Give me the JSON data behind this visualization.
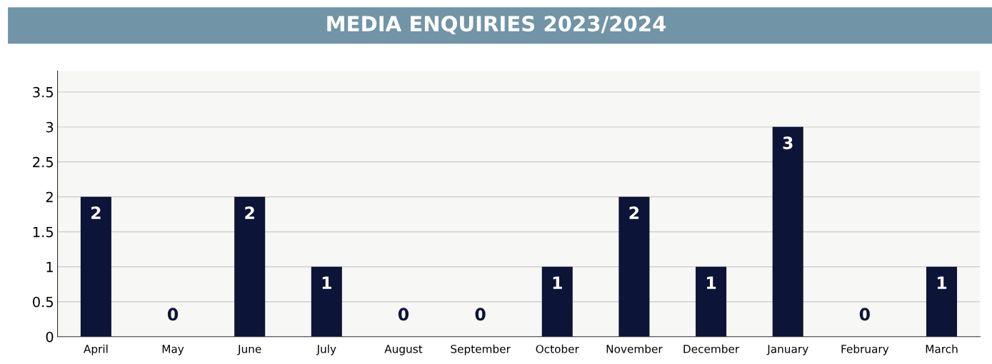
{
  "chart_data": {
    "type": "bar",
    "title": "MEDIA ENQUIRIES 2023/2024",
    "categories": [
      "April",
      "May",
      "June",
      "July",
      "August",
      "September",
      "October",
      "November",
      "December",
      "January",
      "February",
      "March"
    ],
    "values": [
      2,
      0,
      2,
      1,
      0,
      0,
      1,
      2,
      1,
      3,
      0,
      1
    ],
    "color": "#0c1537",
    "ylim": [
      0,
      3.8
    ],
    "yticks": [
      0,
      0.5,
      1,
      1.5,
      2,
      2.5,
      3,
      3.5
    ],
    "grid": "y",
    "data_labels": true
  }
}
